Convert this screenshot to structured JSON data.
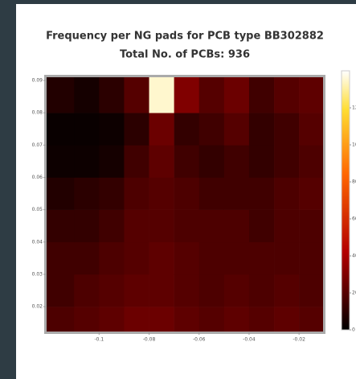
{
  "chart_data": {
    "type": "heatmap",
    "title": "Frequency per NG pads for PCB type BB302882",
    "subtitle": "Total No. of PCBs: 936",
    "xbins": [
      -0.121,
      -0.11,
      -0.1,
      -0.09,
      -0.08,
      -0.07,
      -0.06,
      -0.05,
      -0.04,
      -0.03,
      -0.02,
      -0.0104
    ],
    "ybins": [
      0.0123,
      0.02,
      0.03,
      0.04,
      0.05,
      0.06,
      0.07,
      0.08,
      0.091
    ],
    "z": [
      [
        18,
        20,
        22,
        25,
        25,
        22,
        20,
        22,
        20,
        22,
        20
      ],
      [
        15,
        18,
        20,
        22,
        22,
        20,
        18,
        20,
        18,
        20,
        18
      ],
      [
        15,
        15,
        18,
        20,
        22,
        20,
        18,
        18,
        18,
        18,
        18
      ],
      [
        12,
        12,
        15,
        20,
        20,
        18,
        18,
        18,
        15,
        18,
        18
      ],
      [
        8,
        10,
        12,
        18,
        20,
        18,
        15,
        15,
        15,
        18,
        20
      ],
      [
        3,
        3,
        5,
        15,
        22,
        15,
        12,
        15,
        12,
        15,
        18
      ],
      [
        2,
        2,
        3,
        10,
        25,
        12,
        15,
        20,
        12,
        15,
        20
      ],
      [
        8,
        5,
        10,
        20,
        135,
        30,
        20,
        25,
        15,
        20,
        22
      ]
    ],
    "xlim": [
      -0.121,
      -0.0104
    ],
    "ylim": [
      0.0123,
      0.091
    ],
    "xticks": [
      -0.1,
      -0.08,
      -0.06,
      -0.04,
      -0.02
    ],
    "yticks": [
      0.02,
      0.03,
      0.04,
      0.05,
      0.06,
      0.07,
      0.08,
      0.09
    ],
    "zlim": [
      0,
      140
    ],
    "zticks": [
      0,
      20,
      40,
      60,
      80,
      100,
      120
    ],
    "colorscale": [
      [
        0,
        "#000000"
      ],
      [
        0.3,
        "#b30000"
      ],
      [
        0.6,
        "#ff6600"
      ],
      [
        0.85,
        "#ffdd33"
      ],
      [
        1,
        "#ffffff"
      ]
    ]
  }
}
